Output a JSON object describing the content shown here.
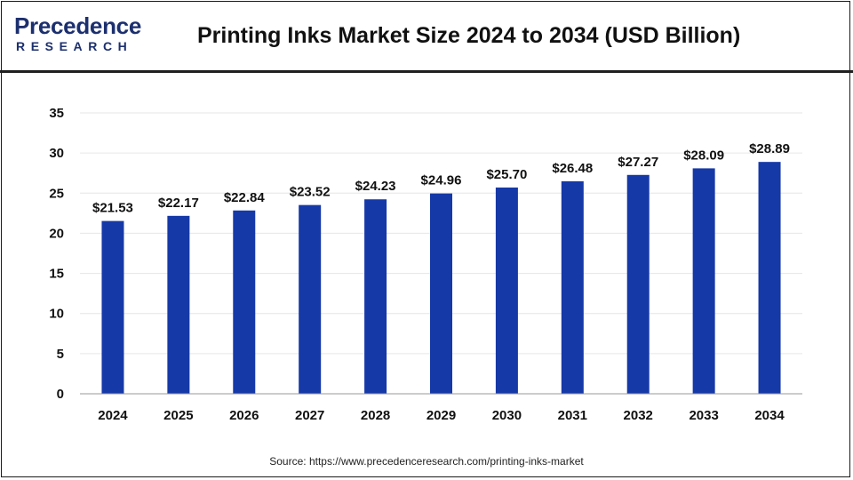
{
  "brand": {
    "name_top": "Precedence",
    "name_bottom": "RESEARCH",
    "color": "#1c2f6e"
  },
  "chart_data": {
    "type": "bar",
    "title": "Printing Inks Market Size 2024 to 2034 (USD Billion)",
    "categories": [
      "2024",
      "2025",
      "2026",
      "2027",
      "2028",
      "2029",
      "2030",
      "2031",
      "2032",
      "2033",
      "2034"
    ],
    "values": [
      21.53,
      22.17,
      22.84,
      23.52,
      24.23,
      24.96,
      25.7,
      26.48,
      27.27,
      28.09,
      28.89
    ],
    "data_labels": [
      "$21.53",
      "$22.17",
      "$22.84",
      "$23.52",
      "$24.23",
      "$24.96",
      "$25.70",
      "$26.48",
      "$27.27",
      "$28.09",
      "$28.89"
    ],
    "ylim": [
      0,
      35
    ],
    "yticks": [
      0,
      5,
      10,
      15,
      20,
      25,
      30,
      35
    ],
    "xlabel": "",
    "ylabel": "",
    "bar_color": "#1639a8",
    "grid": true,
    "legend": "none"
  },
  "source": "Source: https://www.precedenceresearch.com/printing-inks-market"
}
